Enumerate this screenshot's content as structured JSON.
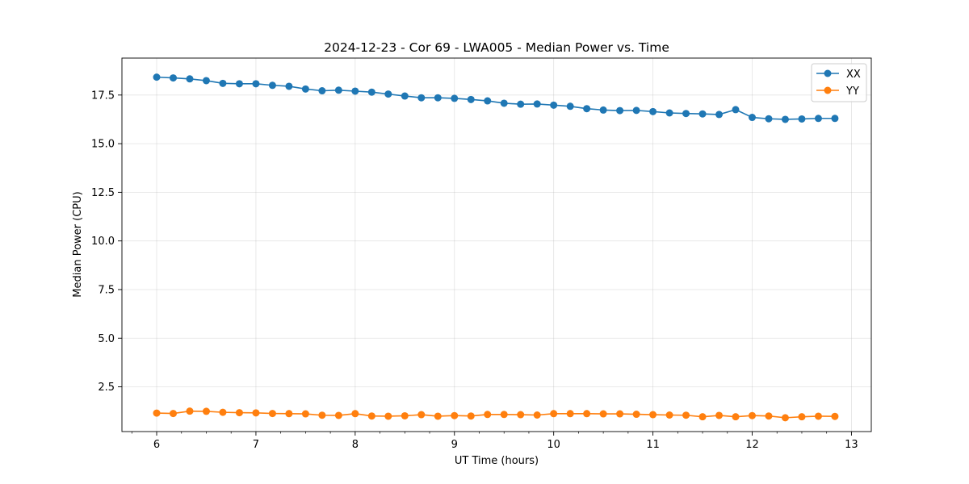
{
  "chart_data": {
    "type": "line",
    "title": "2024-12-23 - Cor 69 - LWA005 - Median Power vs. Time",
    "xlabel": "UT Time (hours)",
    "ylabel": "Median Power (CPU)",
    "xlim": [
      5.65,
      13.2
    ],
    "ylim": [
      0.2,
      19.4
    ],
    "xticks": [
      6,
      7,
      8,
      9,
      10,
      11,
      12,
      13
    ],
    "xtick_labels": [
      "6",
      "7",
      "8",
      "9",
      "10",
      "11",
      "12",
      "13"
    ],
    "yticks": [
      2.5,
      5.0,
      7.5,
      10.0,
      12.5,
      15.0,
      17.5
    ],
    "ytick_labels": [
      "2.5",
      "5.0",
      "7.5",
      "10.0",
      "12.5",
      "15.0",
      "17.5"
    ],
    "grid": true,
    "legend_position": "top-right",
    "x": [
      6.0,
      6.1667,
      6.3333,
      6.5,
      6.6667,
      6.8333,
      7.0,
      7.1667,
      7.3333,
      7.5,
      7.6667,
      7.8333,
      8.0,
      8.1667,
      8.3333,
      8.5,
      8.6667,
      8.8333,
      9.0,
      9.1667,
      9.3333,
      9.5,
      9.6667,
      9.8333,
      10.0,
      10.1667,
      10.3333,
      10.5,
      10.6667,
      10.8333,
      11.0,
      11.1667,
      11.3333,
      11.5,
      11.6667,
      11.8333,
      12.0,
      12.1667,
      12.3333,
      12.5,
      12.6667,
      12.8333
    ],
    "series": [
      {
        "name": "XX",
        "color": "#1f77b4",
        "values": [
          18.42,
          18.38,
          18.33,
          18.24,
          18.1,
          18.08,
          18.08,
          18.0,
          17.95,
          17.81,
          17.72,
          17.75,
          17.7,
          17.65,
          17.55,
          17.45,
          17.36,
          17.36,
          17.33,
          17.27,
          17.2,
          17.08,
          17.03,
          17.04,
          16.98,
          16.92,
          16.8,
          16.73,
          16.7,
          16.71,
          16.65,
          16.58,
          16.55,
          16.53,
          16.5,
          16.75,
          16.35,
          16.28,
          16.25,
          16.27,
          16.3,
          16.3
        ]
      },
      {
        "name": "YY",
        "color": "#ff7f0e",
        "values": [
          1.15,
          1.13,
          1.25,
          1.24,
          1.19,
          1.17,
          1.16,
          1.13,
          1.12,
          1.11,
          1.04,
          1.03,
          1.12,
          1.0,
          0.99,
          1.01,
          1.07,
          0.99,
          1.02,
          1.0,
          1.08,
          1.08,
          1.07,
          1.05,
          1.12,
          1.12,
          1.12,
          1.11,
          1.11,
          1.09,
          1.07,
          1.05,
          1.04,
          0.96,
          1.03,
          0.96,
          1.02,
          1.0,
          0.91,
          0.96,
          0.99,
          0.98
        ]
      }
    ]
  }
}
